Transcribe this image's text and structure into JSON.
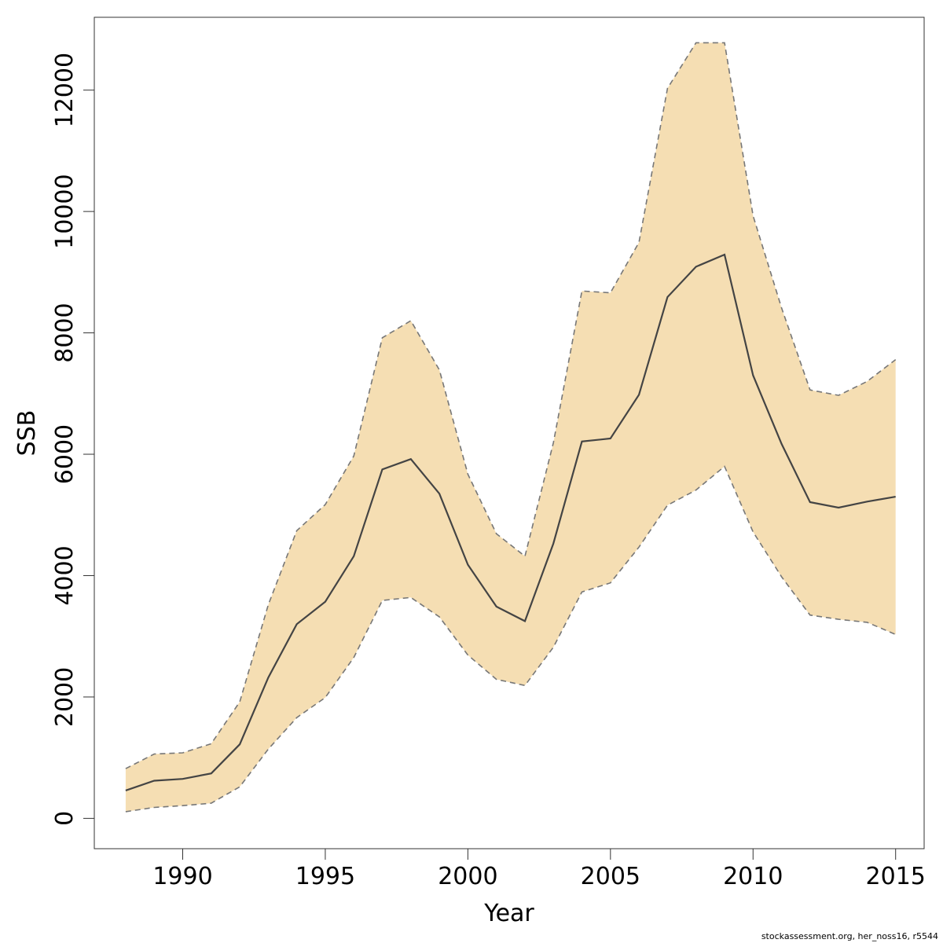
{
  "chart_data": {
    "type": "area",
    "title": "",
    "xlabel": "Year",
    "ylabel": "SSB",
    "xlim": [
      1986.9,
      2016.0
    ],
    "ylim": [
      -500,
      13200
    ],
    "x_ticks": [
      1990,
      1995,
      2000,
      2005,
      2010,
      2015
    ],
    "y_ticks": [
      0,
      2000,
      4000,
      6000,
      8000,
      10000,
      12000
    ],
    "grid": false,
    "legend": "none",
    "colors": {
      "band": "#F5DEB3",
      "estimate": "#444444",
      "bounds": "#777777",
      "frame": "#333333"
    },
    "x": [
      1988,
      1989,
      1990,
      1991,
      1992,
      1993,
      1994,
      1995,
      1996,
      1997,
      1998,
      1999,
      2000,
      2001,
      2002,
      2003,
      2004,
      2005,
      2006,
      2007,
      2008,
      2009,
      2010,
      2011,
      2012,
      2013,
      2014,
      2015
    ],
    "series": [
      {
        "role": "estimate",
        "values": [
          460,
          620,
          650,
          740,
          1220,
          2320,
          3200,
          3570,
          4320,
          5750,
          5920,
          5350,
          4180,
          3490,
          3250,
          4530,
          6210,
          6260,
          6980,
          8590,
          9090,
          9290,
          7300,
          6170,
          5210,
          5120,
          5220,
          5300
        ]
      },
      {
        "role": "upper",
        "values": [
          820,
          1060,
          1080,
          1230,
          1920,
          3520,
          4740,
          5170,
          5970,
          7920,
          8200,
          7390,
          5670,
          4690,
          4320,
          6190,
          8690,
          8660,
          9490,
          12030,
          12780,
          12780,
          9930,
          8410,
          7060,
          6970,
          7200,
          7560
        ]
      },
      {
        "role": "lower",
        "values": [
          110,
          180,
          210,
          250,
          520,
          1140,
          1660,
          1990,
          2650,
          3590,
          3640,
          3320,
          2690,
          2290,
          2190,
          2820,
          3730,
          3880,
          4470,
          5160,
          5410,
          5800,
          4720,
          3980,
          3350,
          3280,
          3230,
          3030
        ]
      }
    ]
  },
  "footer": {
    "source": "stockassessment.org, her_noss16, r5544"
  }
}
